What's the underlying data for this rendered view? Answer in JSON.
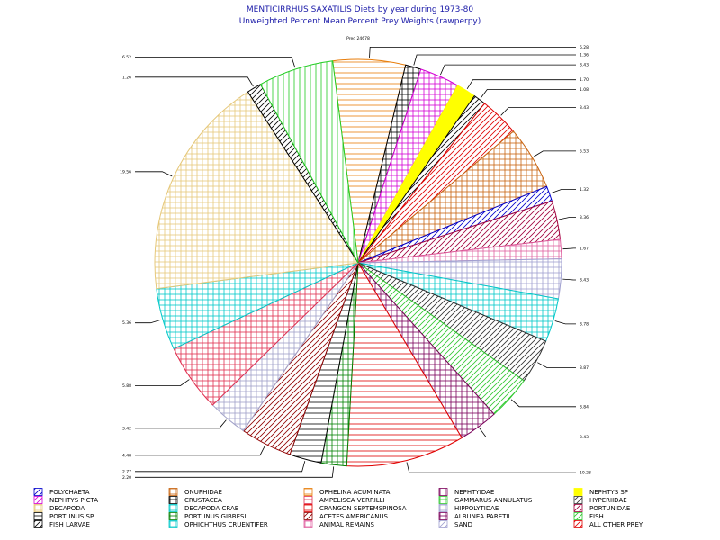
{
  "chart_data": {
    "type": "pie",
    "title": "MENTICIRRHUS SAXATILIS Diets by year during 1973-80",
    "subtitle": "Unweighted Percent Mean Percent Prey  Weights (rawperpy)",
    "top_label": "Pred 24678",
    "slices": [
      {
        "category": "ONUPHIDAE",
        "value": 6.28,
        "label": "6.28",
        "color": "#e87d0a",
        "pattern": "hlines"
      },
      {
        "category": "HIPPOLYTIDAE",
        "value": 1.36,
        "label": "1.36",
        "color": "#000000",
        "pattern": "cross"
      },
      {
        "category": "NEPHTYS PICTA",
        "value": 3.43,
        "label": "3.43",
        "color": "#d400d4",
        "pattern": "cross"
      },
      {
        "category": "NEPHTYS SP",
        "value": 1.7,
        "label": "1.70",
        "color": "#ffff00",
        "pattern": "solid"
      },
      {
        "category": "FISH LARVAE",
        "value": 1.08,
        "label": "1.08",
        "color": "#000000",
        "pattern": "diag"
      },
      {
        "category": "ALL OTHER PREY",
        "value": 3.43,
        "label": "3.43",
        "color": "#e00000",
        "pattern": "diag"
      },
      {
        "category": "CRUSTACEA",
        "value": 5.53,
        "label": "5.53",
        "color": "#c86410",
        "pattern": "cross"
      },
      {
        "category": "POLYCHAETA",
        "value": 1.32,
        "label": "1.32",
        "color": "#0000cc",
        "pattern": "diag"
      },
      {
        "category": "PORTUNIDAE",
        "value": 3.36,
        "label": "3.36",
        "color": "#a0003c",
        "pattern": "diag"
      },
      {
        "category": "ANIMAL REMAINS",
        "value": 1.67,
        "label": "1.67",
        "color": "#e060a0",
        "pattern": "cross"
      },
      {
        "category": "SAND",
        "value": 3.43,
        "label": "3.43",
        "color": "#a0a0d0",
        "pattern": "cross"
      },
      {
        "category": "DECAPODA CRAB",
        "value": 3.78,
        "label": "3.78",
        "color": "#00c8c8",
        "pattern": "cross"
      },
      {
        "category": "HYPERIIDAE",
        "value": 3.87,
        "label": "3.87",
        "color": "#303030",
        "pattern": "diag"
      },
      {
        "category": "GAMMARUS ANNULATUS",
        "value": 3.84,
        "label": "3.84",
        "color": "#30c830",
        "pattern": "diag"
      },
      {
        "category": "NEPHTYIDAE",
        "value": 3.43,
        "label": "3.43",
        "color": "#7a005a",
        "pattern": "cross"
      },
      {
        "category": "CRANGON SEPTEMSPINOSA",
        "value": 10.28,
        "label": "10.28",
        "color": "#e00000",
        "pattern": "hlines"
      },
      {
        "category": "OPHICHTHUS CRUENTIFER",
        "value": 2.2,
        "label": "2.20",
        "color": "#008000",
        "pattern": "cross"
      },
      {
        "category": "PORTUNUS SP",
        "value": 2.77,
        "label": "2.77",
        "color": "#000000",
        "pattern": "hlines"
      },
      {
        "category": "ACETES AMERICANUS",
        "value": 4.48,
        "label": "4.48",
        "color": "#900000",
        "pattern": "diag"
      },
      {
        "category": "ALBUNEA PARETII",
        "value": 3.42,
        "label": "3.42",
        "color": "#a0a0c8",
        "pattern": "cross"
      },
      {
        "category": "AMPELISCA VERRILLI",
        "value": 5.88,
        "label": "5.88",
        "color": "#e03050",
        "pattern": "cross"
      },
      {
        "category": "PORTUNUS GIBBESII",
        "value": 5.36,
        "label": "5.36",
        "color": "#00c8c8",
        "pattern": "cross"
      },
      {
        "category": "DECAPODA",
        "value": 19.56,
        "label": "19.56",
        "color": "#e6c87a",
        "pattern": "cross"
      },
      {
        "category": "FISH",
        "value": 1.26,
        "label": "1.26",
        "color": "#000000",
        "pattern": "diag"
      },
      {
        "category": "OPHELINA ACUMINATA",
        "value": 6.52,
        "label": "6.52",
        "color": "#22cc22",
        "pattern": "vlines"
      }
    ],
    "legend": [
      {
        "label": "POLYCHAETA",
        "color": "#0000cc",
        "pattern": "diag"
      },
      {
        "label": "ONUPHIDAE",
        "color": "#c86410",
        "pattern": "cross"
      },
      {
        "label": "OPHELINA ACUMINATA",
        "color": "#e87d0a",
        "pattern": "hlines"
      },
      {
        "label": "NEPHTYIDAE",
        "color": "#7a005a",
        "pattern": "vlines"
      },
      {
        "label": "NEPHTYS SP",
        "color": "#ffff00",
        "pattern": "solid"
      },
      {
        "label": "NEPHTYS PICTA",
        "color": "#d400d4",
        "pattern": "diag"
      },
      {
        "label": "CRUSTACEA",
        "color": "#000000",
        "pattern": "cross"
      },
      {
        "label": "AMPELISCA VERRILLI",
        "color": "#e03050",
        "pattern": "hlines"
      },
      {
        "label": "GAMMARUS ANNULATUS",
        "color": "#30c830",
        "pattern": "cross"
      },
      {
        "label": "HYPERIIDAE",
        "color": "#303030",
        "pattern": "diag"
      },
      {
        "label": "DECAPODA",
        "color": "#e6c87a",
        "pattern": "cross"
      },
      {
        "label": "DECAPODA CRAB",
        "color": "#00c8c8",
        "pattern": "cross"
      },
      {
        "label": "CRANGON SEPTEMSPINOSA",
        "color": "#e00000",
        "pattern": "hlines"
      },
      {
        "label": "HIPPOLYTIDAE",
        "color": "#a0a0d0",
        "pattern": "cross"
      },
      {
        "label": "PORTUNIDAE",
        "color": "#a0003c",
        "pattern": "diag"
      },
      {
        "label": "PORTUNUS SP",
        "color": "#000000",
        "pattern": "hlines"
      },
      {
        "label": "PORTUNUS GIBBESII",
        "color": "#008000",
        "pattern": "cross"
      },
      {
        "label": "ACETES AMERICANUS",
        "color": "#900000",
        "pattern": "diag"
      },
      {
        "label": "ALBUNEA PARETII",
        "color": "#7a005a",
        "pattern": "cross"
      },
      {
        "label": "FISH",
        "color": "#30c830",
        "pattern": "diag"
      },
      {
        "label": "FISH LARVAE",
        "color": "#000000",
        "pattern": "diag"
      },
      {
        "label": "OPHICHTHUS CRUENTIFER",
        "color": "#00c8c8",
        "pattern": "cross"
      },
      {
        "label": "ANIMAL REMAINS",
        "color": "#e060a0",
        "pattern": "cross"
      },
      {
        "label": "SAND",
        "color": "#a0a0d0",
        "pattern": "diag"
      },
      {
        "label": "ALL OTHER PREY",
        "color": "#e00000",
        "pattern": "diag"
      }
    ]
  }
}
